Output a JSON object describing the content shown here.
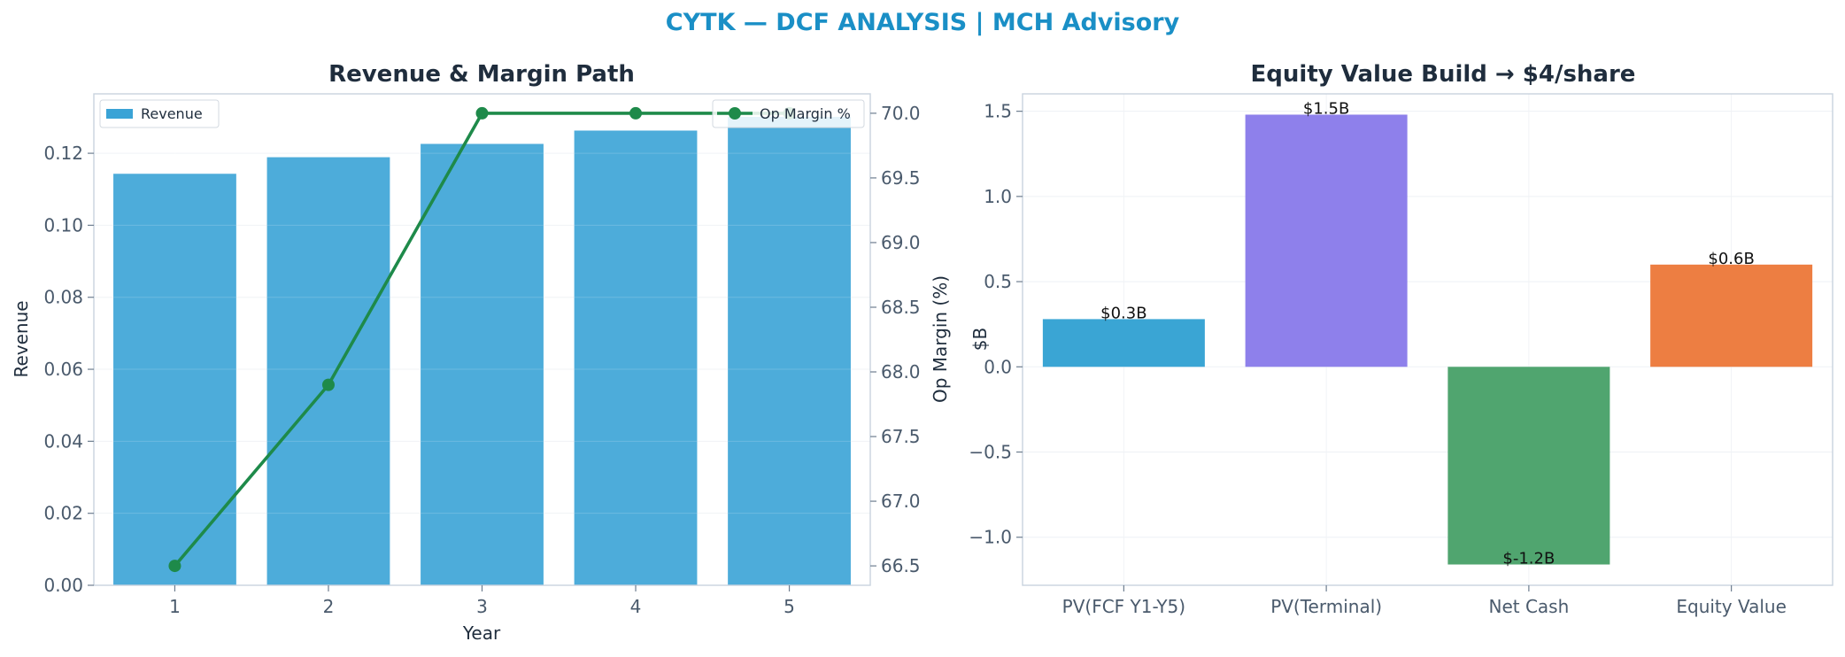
{
  "figure": {
    "suptitle": "CYTK — DCF ANALYSIS | MCH Advisory",
    "suptitle_color": "#1a8fc6"
  },
  "chart_data": [
    {
      "type": "bar",
      "title": "Revenue & Margin Path",
      "xlabel": "Year",
      "ylabel": "Revenue",
      "categories": [
        "1",
        "2",
        "3",
        "4",
        "5"
      ],
      "values": [
        0.1143,
        0.1189,
        0.1226,
        0.1263,
        0.1301
      ],
      "ylim": [
        0,
        0.1365
      ],
      "yticks": [
        "0.00",
        "0.02",
        "0.04",
        "0.06",
        "0.08",
        "0.10",
        "0.12"
      ],
      "bar_color": "#3aa3d6",
      "bar_legend": "Revenue",
      "bar_legend_position": "top-left",
      "line": {
        "name": "Op Margin %",
        "ylabel": "Op Margin (%)",
        "values": [
          66.5,
          67.9,
          70.0,
          70.0,
          70.0
        ],
        "ylim": [
          66.35,
          70.15
        ],
        "yticks": [
          "66.5",
          "67.0",
          "67.5",
          "68.0",
          "68.5",
          "69.0",
          "69.5",
          "70.0"
        ],
        "color": "#1e8a4a",
        "legend_position": "top-right"
      },
      "grid": true
    },
    {
      "type": "bar",
      "title": "Equity Value Build → $4/share",
      "ylabel": "$B",
      "categories": [
        "PV(FCF Y1-Y5)",
        "PV(Terminal)",
        "Net Cash",
        "Equity Value"
      ],
      "values": [
        0.28,
        1.48,
        -1.16,
        0.6
      ],
      "data_labels": [
        "$0.3B",
        "$1.5B",
        "$-1.2B",
        "$0.6B"
      ],
      "colors": [
        "#34a2d3",
        "#8a7cea",
        "#4aa26a",
        "#ec7a3c"
      ],
      "ylim": [
        -1.282,
        1.602
      ],
      "yticks": [
        "−1.0",
        "−0.5",
        "0.0",
        "0.5",
        "1.0",
        "1.5"
      ],
      "grid": true
    }
  ]
}
